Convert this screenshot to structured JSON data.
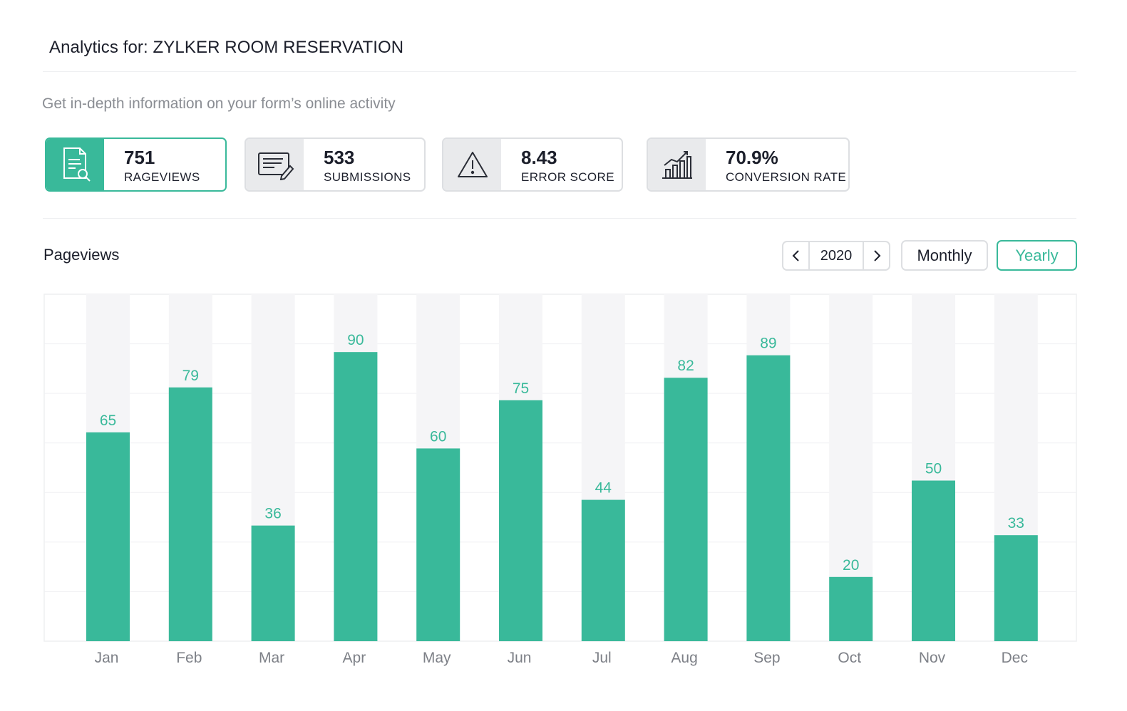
{
  "header": {
    "title": "Analytics for: ZYLKER ROOM RESERVATION",
    "subtitle": "Get in-depth information on your form’s online activity"
  },
  "stats": [
    {
      "value": "751",
      "label": "RAGEVIEWS",
      "icon": "document-search-icon",
      "active": true
    },
    {
      "value": "533",
      "label": "SUBMISSIONS",
      "icon": "form-edit-icon",
      "active": false
    },
    {
      "value": "8.43",
      "label": "ERROR SCORE",
      "icon": "warning-icon",
      "active": false
    },
    {
      "value": "70.9%",
      "label": "CONVERSION RATE",
      "icon": "growth-chart-icon",
      "active": false
    }
  ],
  "section": {
    "title": "Pageviews"
  },
  "controls": {
    "year": "2020",
    "monthly_label": "Monthly",
    "yearly_label": "Yearly",
    "selected_period": "Yearly"
  },
  "colors": {
    "accent": "#39b99a",
    "track": "#f5f5f7",
    "text": "#1c1f2b"
  },
  "chart_data": {
    "type": "bar",
    "title": "",
    "xlabel": "",
    "ylabel": "",
    "categories": [
      "Jan",
      "Feb",
      "Mar",
      "Apr",
      "May",
      "Jun",
      "Jul",
      "Aug",
      "Sep",
      "Oct",
      "Nov",
      "Dec"
    ],
    "values": [
      65,
      79,
      36,
      90,
      60,
      75,
      44,
      82,
      89,
      20,
      50,
      33
    ],
    "ylim": [
      0,
      108
    ],
    "grid": true,
    "data_labels": true
  }
}
